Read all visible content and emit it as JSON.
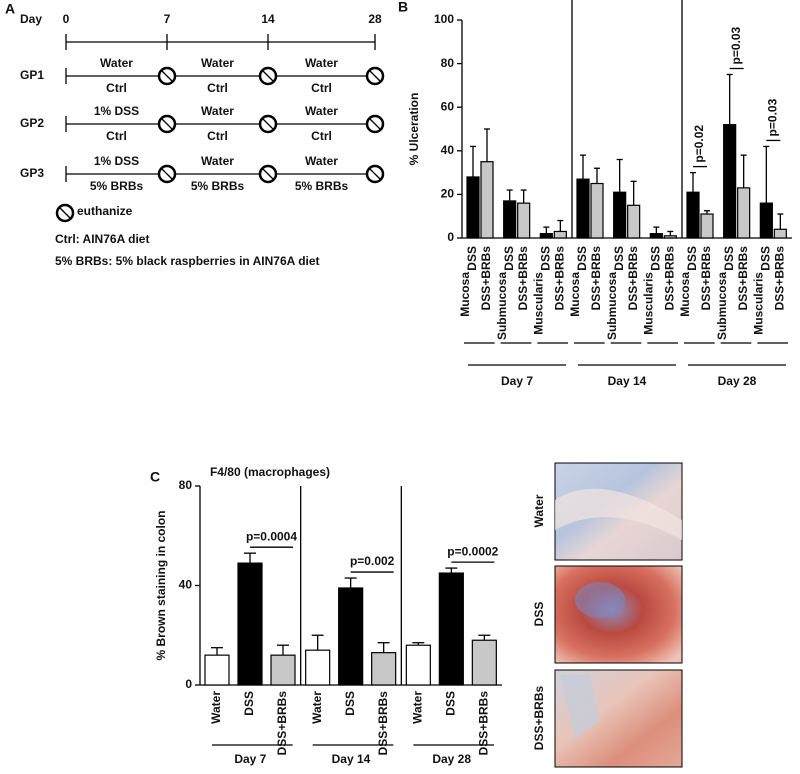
{
  "panel_a": {
    "label": "A",
    "day_label": "Day",
    "days": [
      0,
      7,
      14,
      28
    ],
    "groups": [
      {
        "name": "GP1",
        "segments": [
          {
            "top": "Water",
            "bottom": "Ctrl"
          },
          {
            "top": "Water",
            "bottom": "Ctrl"
          },
          {
            "top": "Water",
            "bottom": "Ctrl"
          }
        ]
      },
      {
        "name": "GP2",
        "segments": [
          {
            "top": "1% DSS",
            "bottom": "Ctrl"
          },
          {
            "top": "Water",
            "bottom": "Ctrl"
          },
          {
            "top": "Water",
            "bottom": "Ctrl"
          }
        ]
      },
      {
        "name": "GP3",
        "segments": [
          {
            "top": "1% DSS",
            "bottom": "5% BRBs"
          },
          {
            "top": "Water",
            "bottom": "5% BRBs"
          },
          {
            "top": "Water",
            "bottom": "5% BRBs"
          }
        ]
      }
    ],
    "symbol_label": "euthanize",
    "notes": [
      "Ctrl: AIN76A diet",
      "5% BRBs: 5% black raspberries in AIN76A diet"
    ]
  },
  "chart_data": [
    {
      "type": "bar",
      "panel_label": "B",
      "ylabel": "% Ulceration",
      "ylim": [
        0,
        100
      ],
      "yticks": [
        0,
        20,
        40,
        60,
        80,
        100
      ],
      "groups": [
        "Day 7",
        "Day 14",
        "Day 28"
      ],
      "categories": [
        "Mucosa",
        "Submucosa",
        "Muscularis",
        "Mucosa",
        "Submucosa",
        "Muscularis",
        "Mucosa",
        "Submucosa",
        "Muscularis"
      ],
      "series": [
        {
          "name": "DSS",
          "color": "#000000",
          "values": [
            28,
            17,
            2,
            27,
            21,
            2,
            21,
            52,
            16
          ],
          "errors": [
            14,
            5,
            3,
            11,
            15,
            3,
            9,
            23,
            26
          ]
        },
        {
          "name": "DSS+BRBs",
          "color": "#c8c8c8",
          "values": [
            35,
            16,
            3,
            25,
            15,
            1,
            11,
            23,
            4
          ],
          "errors": [
            15,
            6,
            5,
            7,
            11,
            2,
            1.5,
            15,
            7
          ]
        }
      ],
      "annotations": [
        "p=0.02",
        "p=0.03",
        "p=0.03"
      ]
    },
    {
      "type": "bar",
      "panel_label": "C",
      "title": "F4/80 (macrophages)",
      "ylabel": "% Brown staining in colon",
      "ylim": [
        0,
        80
      ],
      "yticks": [
        0,
        40,
        80
      ],
      "categories": [
        "Day 7",
        "Day 14",
        "Day 28"
      ],
      "series": [
        {
          "name": "Water",
          "color": "#ffffff",
          "values": [
            12,
            14,
            16
          ],
          "errors": [
            3,
            6,
            1
          ]
        },
        {
          "name": "DSS",
          "color": "#000000",
          "values": [
            49,
            39,
            45
          ],
          "errors": [
            4,
            4,
            2
          ]
        },
        {
          "name": "DSS+BRBs",
          "color": "#c8c8c8",
          "values": [
            12,
            13,
            18
          ],
          "errors": [
            4,
            4,
            2
          ]
        }
      ],
      "annotations": [
        "p=0.0004",
        "p=0.002",
        "p=0.0002"
      ]
    }
  ]
}
